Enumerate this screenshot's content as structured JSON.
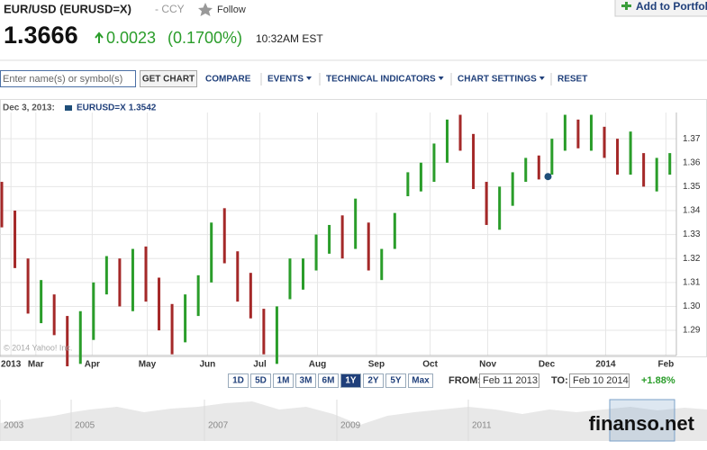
{
  "header": {
    "title": "EUR/USD (EURUSD=X)",
    "category": "- CCY",
    "follow": "Follow",
    "portfolio": "Add to Portfoli",
    "price": "1.3666",
    "change": "0.0023",
    "change_pct": "(0.1700%)",
    "time": "10:32AM EST"
  },
  "toolbar": {
    "placeholder": "Enter name(s) or symbol(s)",
    "button": "GET CHART",
    "links": [
      "COMPARE",
      "EVENTS",
      "TECHNICAL INDICATORS",
      "CHART SETTINGS",
      "RESET"
    ]
  },
  "chart_data": {
    "type": "range-bar",
    "tooltip": {
      "date": "Dec 3, 2013:",
      "series": "EURUSD=X",
      "value": 1.3542,
      "x": 41.7,
      "color": "#1f4e79"
    },
    "x": [
      0,
      1,
      2,
      3,
      4,
      5,
      6,
      7,
      8,
      9,
      10,
      11,
      12,
      13,
      14,
      15,
      16,
      17,
      18,
      19,
      20,
      21,
      22,
      23,
      24,
      25,
      26,
      27,
      28,
      29,
      30,
      31,
      32,
      33,
      34,
      35,
      36,
      37,
      38,
      39,
      40,
      41,
      42,
      43,
      44,
      45,
      46,
      47,
      48,
      49,
      50,
      51
    ],
    "low": [
      1.333,
      1.316,
      1.297,
      1.293,
      1.288,
      1.275,
      1.276,
      1.286,
      1.305,
      1.3,
      1.298,
      1.302,
      1.29,
      1.28,
      1.285,
      1.296,
      1.31,
      1.318,
      1.302,
      1.295,
      1.28,
      1.276,
      1.303,
      1.307,
      1.315,
      1.322,
      1.32,
      1.324,
      1.315,
      1.311,
      1.324,
      1.346,
      1.348,
      1.352,
      1.36,
      1.365,
      1.349,
      1.334,
      1.332,
      1.342,
      1.352,
      1.353,
      1.355,
      1.365,
      1.366,
      1.365,
      1.362,
      1.355,
      1.355,
      1.35,
      1.348,
      1.355
    ],
    "high": [
      1.352,
      1.34,
      1.32,
      1.311,
      1.305,
      1.296,
      1.298,
      1.31,
      1.321,
      1.32,
      1.324,
      1.325,
      1.312,
      1.301,
      1.305,
      1.313,
      1.335,
      1.341,
      1.323,
      1.314,
      1.299,
      1.3,
      1.32,
      1.32,
      1.33,
      1.334,
      1.338,
      1.345,
      1.335,
      1.324,
      1.339,
      1.356,
      1.36,
      1.368,
      1.378,
      1.38,
      1.372,
      1.352,
      1.35,
      1.356,
      1.362,
      1.363,
      1.37,
      1.38,
      1.378,
      1.38,
      1.375,
      1.37,
      1.373,
      1.364,
      1.362,
      1.364
    ],
    "colors": [
      "#a42828",
      "#a42828",
      "#a42828",
      "#2a9d2a",
      "#a42828",
      "#a42828",
      "#2a9d2a",
      "#2a9d2a",
      "#2a9d2a",
      "#a42828",
      "#2a9d2a",
      "#a42828",
      "#a42828",
      "#a42828",
      "#2a9d2a",
      "#2a9d2a",
      "#2a9d2a",
      "#a42828",
      "#a42828",
      "#a42828",
      "#a42828",
      "#2a9d2a",
      "#2a9d2a",
      "#2a9d2a",
      "#2a9d2a",
      "#2a9d2a",
      "#a42828",
      "#2a9d2a",
      "#a42828",
      "#2a9d2a",
      "#2a9d2a",
      "#2a9d2a",
      "#2a9d2a",
      "#2a9d2a",
      "#2a9d2a",
      "#a42828",
      "#a42828",
      "#a42828",
      "#2a9d2a",
      "#2a9d2a",
      "#2a9d2a",
      "#a42828",
      "#2a9d2a",
      "#2a9d2a",
      "#a42828",
      "#2a9d2a",
      "#a42828",
      "#a42828",
      "#2a9d2a",
      "#a42828",
      "#2a9d2a",
      "#2a9d2a"
    ],
    "xlim": [
      0,
      51.5
    ],
    "xticks": [
      {
        "value": 0.7,
        "label": "2013"
      },
      {
        "value": 2.6,
        "label": "Mar"
      },
      {
        "value": 6.9,
        "label": "Apr"
      },
      {
        "value": 11.1,
        "label": "May"
      },
      {
        "value": 15.7,
        "label": "Jun"
      },
      {
        "value": 19.7,
        "label": "Jul"
      },
      {
        "value": 24.1,
        "label": "Aug"
      },
      {
        "value": 28.6,
        "label": "Sep"
      },
      {
        "value": 32.7,
        "label": "Oct"
      },
      {
        "value": 37.1,
        "label": "Nov"
      },
      {
        "value": 41.6,
        "label": "Dec"
      },
      {
        "value": 46.1,
        "label": "2014"
      },
      {
        "value": 50.7,
        "label": "Feb"
      }
    ],
    "ylim": [
      1.2795,
      1.3802
    ],
    "yticks": [
      1.29,
      {
        "value": 1.3,
        "label": "1.30"
      },
      1.31,
      1.32,
      1.33,
      1.34,
      1.35,
      1.36,
      1.37
    ],
    "grid": true,
    "copyright": "© 2014 Yahoo! Inc."
  },
  "range": {
    "buttons": [
      "1D",
      "5D",
      "1M",
      "3M",
      "6M",
      "1Y",
      "2Y",
      "5Y",
      "Max"
    ],
    "selected": "1Y",
    "from_label": "FROM:",
    "from": "Feb 11 2013",
    "to_label": "TO:",
    "to": "Feb 10 2014",
    "change": "+1.88%"
  },
  "navigator": {
    "years": [
      "2003",
      "2005",
      "2007",
      "2009",
      "2011"
    ]
  },
  "watermark": "finanso.net"
}
